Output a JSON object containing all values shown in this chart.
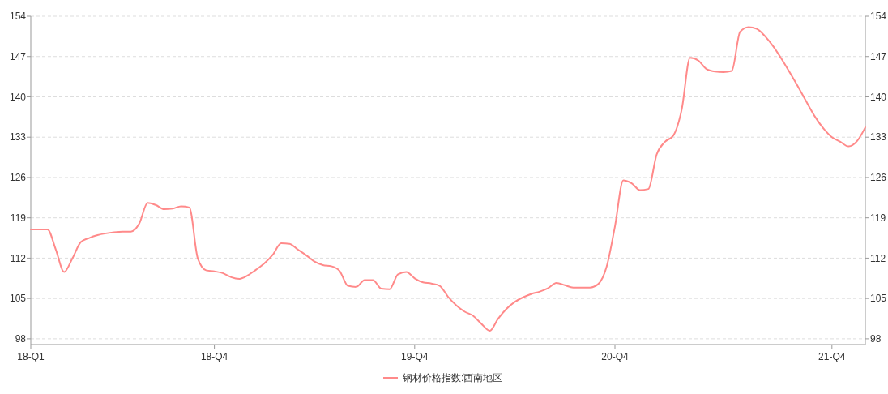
{
  "chart_data": {
    "type": "line",
    "categories": [
      "18-Q1",
      null,
      null,
      null,
      null,
      null,
      null,
      null,
      null,
      null,
      null,
      null,
      null,
      null,
      null,
      null,
      null,
      null,
      null,
      null,
      null,
      null,
      "18-Q4",
      null,
      null,
      null,
      null,
      null,
      null,
      null,
      null,
      null,
      null,
      null,
      null,
      null,
      null,
      null,
      null,
      null,
      null,
      null,
      null,
      null,
      null,
      null,
      "19-Q4",
      null,
      null,
      null,
      null,
      null,
      null,
      null,
      null,
      null,
      null,
      null,
      null,
      null,
      null,
      null,
      null,
      null,
      null,
      null,
      null,
      null,
      null,
      null,
      "20-Q4",
      null,
      null,
      null,
      null,
      null,
      null,
      null,
      null,
      null,
      null,
      null,
      null,
      null,
      null,
      null,
      null,
      null,
      null,
      null,
      null,
      null,
      null,
      null,
      null,
      null,
      "21-Q4",
      null,
      null,
      null,
      null
    ],
    "series": [
      {
        "name": "钢材价格指数:西南地区",
        "color": "#ff8a8a",
        "values": [
          117.0,
          117.0,
          117.0,
          113.5,
          109.6,
          112.0,
          114.8,
          115.5,
          116.0,
          116.3,
          116.5,
          116.6,
          116.6,
          118.0,
          121.6,
          121.2,
          120.5,
          120.6,
          121.0,
          120.8,
          112.0,
          109.9,
          109.7,
          109.4,
          108.7,
          108.4,
          109.0,
          110.0,
          111.1,
          112.6,
          114.6,
          114.5,
          113.5,
          112.5,
          111.4,
          110.8,
          110.6,
          109.8,
          107.2,
          107.0,
          108.2,
          108.2,
          106.7,
          106.6,
          109.2,
          109.6,
          108.5,
          107.8,
          107.6,
          107.2,
          105.3,
          103.8,
          102.7,
          102.0,
          100.6,
          99.4,
          101.5,
          103.2,
          104.4,
          105.2,
          105.8,
          106.2,
          106.8,
          107.7,
          107.3,
          106.9,
          106.9,
          106.9,
          107.5,
          110.5,
          117.5,
          125.5,
          125.0,
          123.8,
          124.0,
          130.0,
          132.2,
          133.3,
          137.8,
          146.8,
          146.3,
          144.8,
          144.4,
          144.3,
          144.5,
          151.3,
          152.1,
          151.8,
          150.5,
          148.7,
          146.5,
          144.1,
          141.6,
          139.0,
          136.5,
          134.5,
          133.0,
          132.2,
          131.4,
          132.3,
          134.7
        ]
      }
    ],
    "ylim": [
      97,
      154
    ],
    "yticks": [
      98,
      105,
      112,
      119,
      126,
      133,
      140,
      147,
      154
    ],
    "y2lim": [
      97,
      154
    ],
    "y2ticks": [
      98,
      105,
      112,
      119,
      126,
      133,
      140,
      147,
      154
    ],
    "grid": "y",
    "legend": "bottom",
    "line_style": "solid",
    "marker": "none"
  }
}
